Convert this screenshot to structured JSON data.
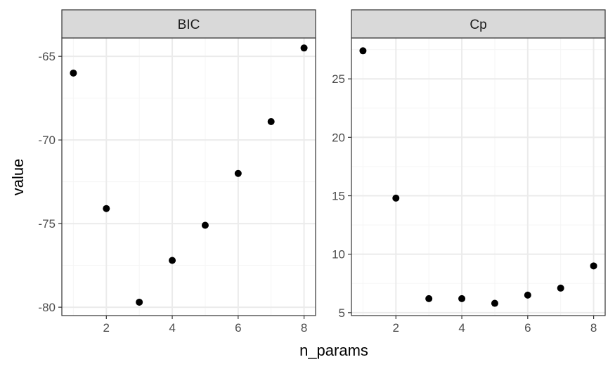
{
  "chart_data": {
    "type": "scatter",
    "xlabel": "n_params",
    "ylabel": "value",
    "colors": {
      "point": "#000000",
      "strip_fill": "#d9d9d9",
      "panel_border": "#333333",
      "grid_major": "#ebebeb",
      "grid_minor": "#f5f5f5",
      "tick_label": "#4d4d4d"
    },
    "panels": [
      {
        "strip": "BIC",
        "x": [
          1,
          2,
          3,
          4,
          5,
          6,
          7,
          8
        ],
        "y": [
          -66.0,
          -74.1,
          -79.7,
          -77.2,
          -75.1,
          -72.0,
          -68.9,
          -64.5
        ],
        "xlim": [
          0.65,
          8.35
        ],
        "ylim": [
          -80.5,
          -63.9
        ],
        "xticks": [
          2,
          4,
          6,
          8
        ],
        "xtick_labels": [
          "2",
          "4",
          "6",
          "8"
        ],
        "yticks": [
          -80,
          -75,
          -70,
          -65
        ],
        "ytick_labels": [
          "-80",
          "-75",
          "-70",
          "-65"
        ],
        "grid": true
      },
      {
        "strip": "Cp",
        "x": [
          1,
          2,
          3,
          4,
          5,
          6,
          7,
          8
        ],
        "y": [
          27.4,
          14.8,
          6.2,
          6.2,
          5.8,
          6.5,
          7.1,
          9.0
        ],
        "xlim": [
          0.65,
          8.35
        ],
        "ylim": [
          4.75,
          28.5
        ],
        "xticks": [
          2,
          4,
          6,
          8
        ],
        "xtick_labels": [
          "2",
          "4",
          "6",
          "8"
        ],
        "yticks": [
          5,
          10,
          15,
          20,
          25
        ],
        "ytick_labels": [
          "5",
          "10",
          "15",
          "20",
          "25"
        ],
        "grid": true
      }
    ]
  }
}
